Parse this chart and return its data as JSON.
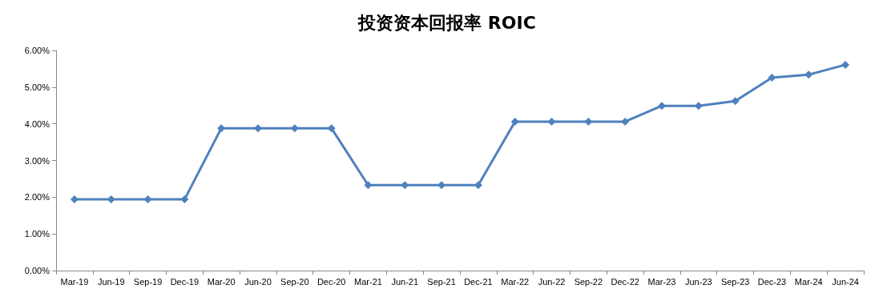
{
  "chart_data": {
    "type": "line",
    "title": "投资资本回报率 ROIC",
    "categories": [
      "Mar-19",
      "Jun-19",
      "Sep-19",
      "Dec-19",
      "Mar-20",
      "Jun-20",
      "Sep-20",
      "Dec-20",
      "Mar-21",
      "Jun-21",
      "Sep-21",
      "Dec-21",
      "Mar-22",
      "Jun-22",
      "Sep-22",
      "Dec-22",
      "Mar-23",
      "Jun-23",
      "Sep-23",
      "Dec-23",
      "Mar-24",
      "Jun-24"
    ],
    "series": [
      {
        "color": "#4f81bd",
        "values": [
          1.94,
          1.94,
          1.94,
          1.94,
          3.88,
          3.88,
          3.88,
          3.88,
          2.33,
          2.33,
          2.33,
          2.33,
          4.06,
          4.06,
          4.06,
          4.06,
          4.49,
          4.49,
          4.62,
          5.26,
          5.34,
          5.61
        ]
      }
    ],
    "ylim": [
      0,
      6
    ],
    "yticks": [
      {
        "value": 0,
        "label": "0.00%"
      },
      {
        "value": 1,
        "label": "1.00%"
      },
      {
        "value": 2,
        "label": "2.00%"
      },
      {
        "value": 3,
        "label": "3.00%"
      },
      {
        "value": 4,
        "label": "4.00%"
      },
      {
        "value": 5,
        "label": "5.00%"
      },
      {
        "value": 6,
        "label": "6.00%"
      }
    ],
    "grid": false,
    "marker": "diamond",
    "line_style": "solid"
  }
}
